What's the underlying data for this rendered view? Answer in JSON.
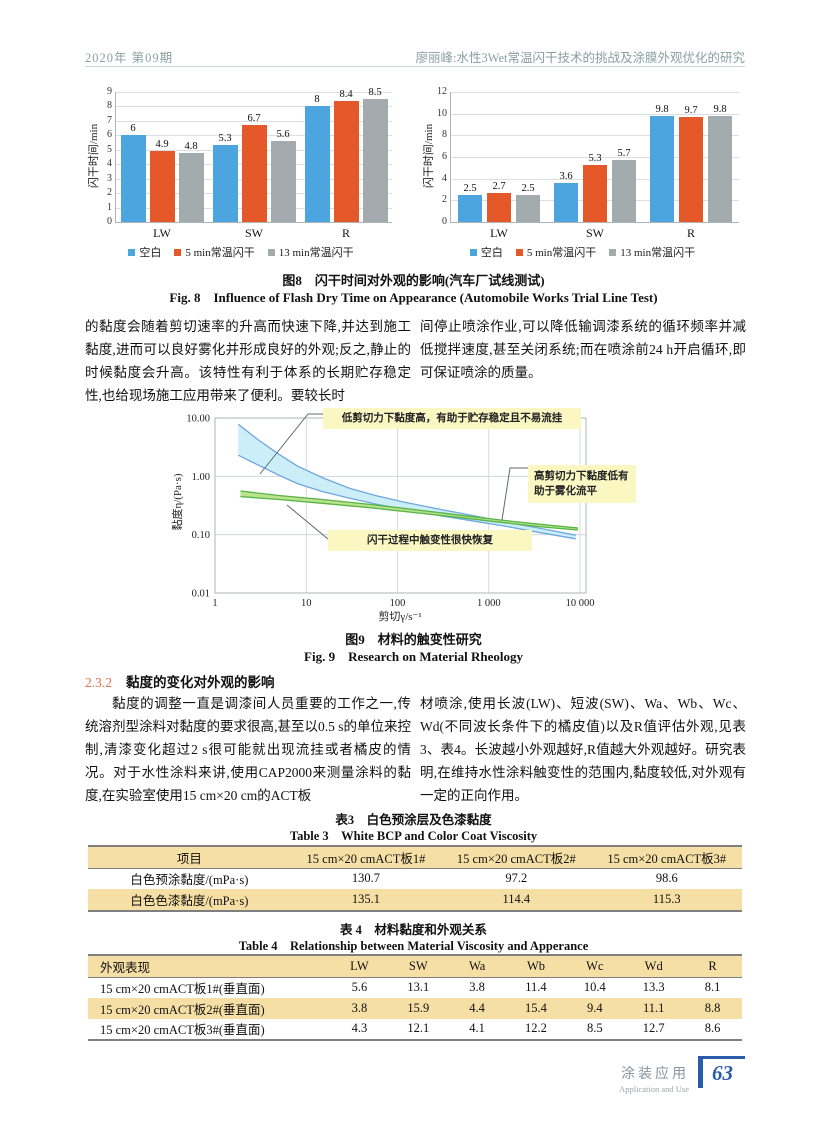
{
  "header": {
    "issue": "2020年 第09期",
    "running_title": "廖丽峰:水性3Wet常温闪干技术的挑战及涂膜外观优化的研究"
  },
  "fig8": {
    "caption_zh": "图8　闪干时间对外观的影响(汽车厂试线测试)",
    "caption_en": "Fig. 8　Influence of Flash Dry Time on Appearance (Automobile Works Trial Line Test)"
  },
  "fig9": {
    "caption_zh": "图9　材料的触变性研究",
    "caption_en": "Fig. 9　Research on Material Rheology"
  },
  "paragraphs": {
    "block1_left": "的黏度会随着剪切速率的升高而快速下降,并达到施工黏度,进而可以良好雾化并形成良好的外观;反之,静止的时候黏度会升高。该特性有利于体系的长期贮存稳定性,也给现场施工应用带来了便利。要较长时",
    "block1_right": "间停止喷涂作业,可以降低输调漆系统的循环频率并减低搅拌速度,甚至关闭系统;而在喷涂前24 h开启循环,即可保证喷涂的质量。",
    "section_no": "2.3.2",
    "section_title": "黏度的变化对外观的影响",
    "block2_left": "黏度的调整一直是调漆间人员重要的工作之一,传统溶剂型涂料对黏度的要求很高,甚至以0.5 s的单位来控制,清漆变化超过2 s很可能就出现流挂或者橘皮的情况。对于水性涂料来讲,使用CAP2000来测量涂料的黏度,在实验室使用15 cm×20 cm的ACT板",
    "block2_right": "材喷涂,使用长波(LW)、短波(SW)、Wa、Wb、Wc、Wd(不同波长条件下的橘皮值)以及R值评估外观,见表3、表4。长波越小外观越好,R值越大外观越好。研究表明,在维持水性涂料触变性的范围内,黏度较低,对外观有一定的正向作用。"
  },
  "chart_data": [
    {
      "type": "bar",
      "categories": [
        "LW",
        "SW",
        "R"
      ],
      "series": [
        {
          "name": "空白",
          "color": "#4da5e0",
          "values": [
            6,
            5.3,
            8
          ]
        },
        {
          "name": "5 min常温闪干",
          "color": "#e4582a",
          "values": [
            4.9,
            6.7,
            8.4
          ]
        },
        {
          "name": "13 min常温闪干",
          "color": "#a4abae",
          "values": [
            4.8,
            5.6,
            8.5
          ]
        }
      ],
      "xlabel": "",
      "ylabel": "闪干时间/min",
      "ylim": [
        0,
        9
      ],
      "ystep": 1,
      "grid": true,
      "legend_position": "bottom"
    },
    {
      "type": "bar",
      "categories": [
        "LW",
        "SW",
        "R"
      ],
      "series": [
        {
          "name": "空白",
          "color": "#4da5e0",
          "values": [
            2.5,
            3.6,
            9.8
          ]
        },
        {
          "name": "5 min常温闪干",
          "color": "#e4582a",
          "values": [
            2.7,
            5.3,
            9.7
          ]
        },
        {
          "name": "13 min常温闪干",
          "color": "#a4abae",
          "values": [
            2.5,
            5.7,
            9.8
          ]
        }
      ],
      "xlabel": "",
      "ylabel": "闪干时间/min",
      "ylim": [
        0,
        12
      ],
      "ystep": 2,
      "grid": true,
      "legend_position": "bottom"
    },
    {
      "type": "area",
      "title": "材料的触变性研究",
      "xlabel": "剪切γ/s⁻¹",
      "ylabel": "黏度η/(Pa·s)",
      "xscale": "log",
      "yscale": "log",
      "xlim": [
        1,
        10000
      ],
      "ylim": [
        0.01,
        10
      ],
      "xticks": [
        "1",
        "10",
        "100",
        "1 000",
        "10 000"
      ],
      "yticks": [
        "0.01",
        "0.10",
        "1.00",
        "10.00"
      ],
      "grid": true,
      "bands": [
        {
          "name": "waterborne-paint-viscosity-band",
          "stroke": "#6fa8dc",
          "fill": "#c9edf8",
          "x": [
            1.8,
            3,
            5,
            8,
            15,
            30,
            60,
            120,
            300,
            700,
            1500,
            3500,
            9000
          ],
          "upper": [
            7.8,
            4.2,
            2.4,
            1.5,
            0.95,
            0.62,
            0.46,
            0.36,
            0.27,
            0.21,
            0.165,
            0.13,
            0.098
          ],
          "lower": [
            2.3,
            1.55,
            1.05,
            0.75,
            0.55,
            0.42,
            0.33,
            0.27,
            0.21,
            0.17,
            0.14,
            0.11,
            0.085
          ]
        },
        {
          "name": "reference-viscosity-band",
          "stroke": "#56b544",
          "fill": "#b8e089",
          "x": [
            1.9,
            5,
            15,
            50,
            150,
            500,
            1500,
            4000,
            9500
          ],
          "upper": [
            0.56,
            0.47,
            0.4,
            0.33,
            0.27,
            0.215,
            0.175,
            0.148,
            0.13
          ],
          "lower": [
            0.45,
            0.4,
            0.345,
            0.29,
            0.24,
            0.195,
            0.16,
            0.135,
            0.12
          ]
        }
      ],
      "annotations": [
        {
          "lines": [
            "低剪切力下黏度高，有助于贮存稳定且不易流挂"
          ]
        },
        {
          "lines": [
            "高剪切力下黏度低有",
            "助于雾化流平"
          ]
        },
        {
          "lines": [
            "闪干过程中触变性很快恢复"
          ]
        }
      ]
    }
  ],
  "table3": {
    "caption_zh": "表3　白色预涂层及色漆黏度",
    "caption_en": "Table 3　White BCP and Color Coat Viscosity",
    "headers": [
      "项目",
      "15 cm×20 cmACT板1#",
      "15 cm×20 cmACT板2#",
      "15 cm×20 cmACT板3#"
    ],
    "rows": [
      [
        "白色预涂黏度/(mPa·s)",
        "130.7",
        "97.2",
        "98.6"
      ],
      [
        "白色色漆黏度/(mPa·s)",
        "135.1",
        "114.4",
        "115.3"
      ]
    ]
  },
  "table4": {
    "caption_zh": "表 4　材料黏度和外观关系",
    "caption_en": "Table 4　Relationship between Material Viscosity and Apperance",
    "headers": [
      "外观表现",
      "LW",
      "SW",
      "Wa",
      "Wb",
      "Wc",
      "Wd",
      "R"
    ],
    "rows": [
      [
        "15 cm×20 cmACT板1#(垂直面)",
        "5.6",
        "13.1",
        "3.8",
        "11.4",
        "10.4",
        "13.3",
        "8.1"
      ],
      [
        "15 cm×20 cmACT板2#(垂直面)",
        "3.8",
        "15.9",
        "4.4",
        "15.4",
        "9.4",
        "11.1",
        "8.8"
      ],
      [
        "15 cm×20 cmACT板3#(垂直面)",
        "4.3",
        "12.1",
        "4.1",
        "12.2",
        "8.5",
        "12.7",
        "8.6"
      ]
    ]
  },
  "footer": {
    "column_zh": "涂装应用",
    "column_en": "Application and Use",
    "page_no": "63"
  },
  "colors": {
    "accent_blue": "#2b5ca9",
    "table_tint": "#f5dfa4",
    "annotation_yellow": "#faf7c3",
    "header_text": "#8aa0a2",
    "section_number": "#e4714c"
  }
}
